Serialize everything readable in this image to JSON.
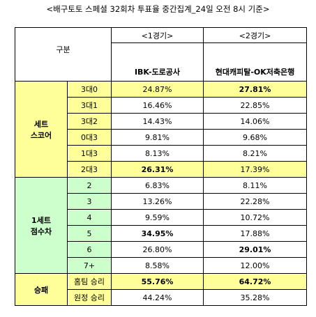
{
  "title": "<배구토토 스페셜 32회차 투표율 중간집계_24일 오전 8시 기준>",
  "table": {
    "header": {
      "group": "구분",
      "match_labels": [
        "<1경기>",
        "<2경기>"
      ],
      "teams": [
        "IBK-도로공사",
        "현대캐피탈-OK저축은행"
      ]
    },
    "sections": [
      {
        "label_lines": [
          "세트",
          "스코어"
        ],
        "rows": [
          {
            "label": "3대0",
            "values": [
              "24.87%",
              "27.81%"
            ]
          },
          {
            "label": "3대1",
            "values": [
              "16.46%",
              "22.85%"
            ]
          },
          {
            "label": "3대2",
            "values": [
              "14.43%",
              "14.06%"
            ]
          },
          {
            "label": "0대3",
            "values": [
              "9.81%",
              "9.68%"
            ]
          },
          {
            "label": "1대3",
            "values": [
              "8.13%",
              "8.21%"
            ]
          },
          {
            "label": "2대3",
            "values": [
              "26.31%",
              "17.39%"
            ]
          }
        ]
      },
      {
        "label_lines": [
          "1세트",
          "점수차"
        ],
        "rows": [
          {
            "label": "2",
            "values": [
              "6.83%",
              "8.11%"
            ]
          },
          {
            "label": "3",
            "values": [
              "13.26%",
              "22.28%"
            ]
          },
          {
            "label": "4",
            "values": [
              "9.59%",
              "10.72%"
            ]
          },
          {
            "label": "5",
            "values": [
              "34.95%",
              "17.88%"
            ]
          },
          {
            "label": "6",
            "values": [
              "26.80%",
              "29.01%"
            ]
          },
          {
            "label": "7+",
            "values": [
              "8.58%",
              "12.00%"
            ]
          }
        ]
      },
      {
        "label_lines": [
          "승패"
        ],
        "rows": [
          {
            "label": "홈팀 승리",
            "values": [
              "55.76%",
              "64.72%"
            ]
          },
          {
            "label": "원정 승리",
            "values": [
              "44.24%",
              "35.28%"
            ]
          }
        ]
      }
    ]
  }
}
